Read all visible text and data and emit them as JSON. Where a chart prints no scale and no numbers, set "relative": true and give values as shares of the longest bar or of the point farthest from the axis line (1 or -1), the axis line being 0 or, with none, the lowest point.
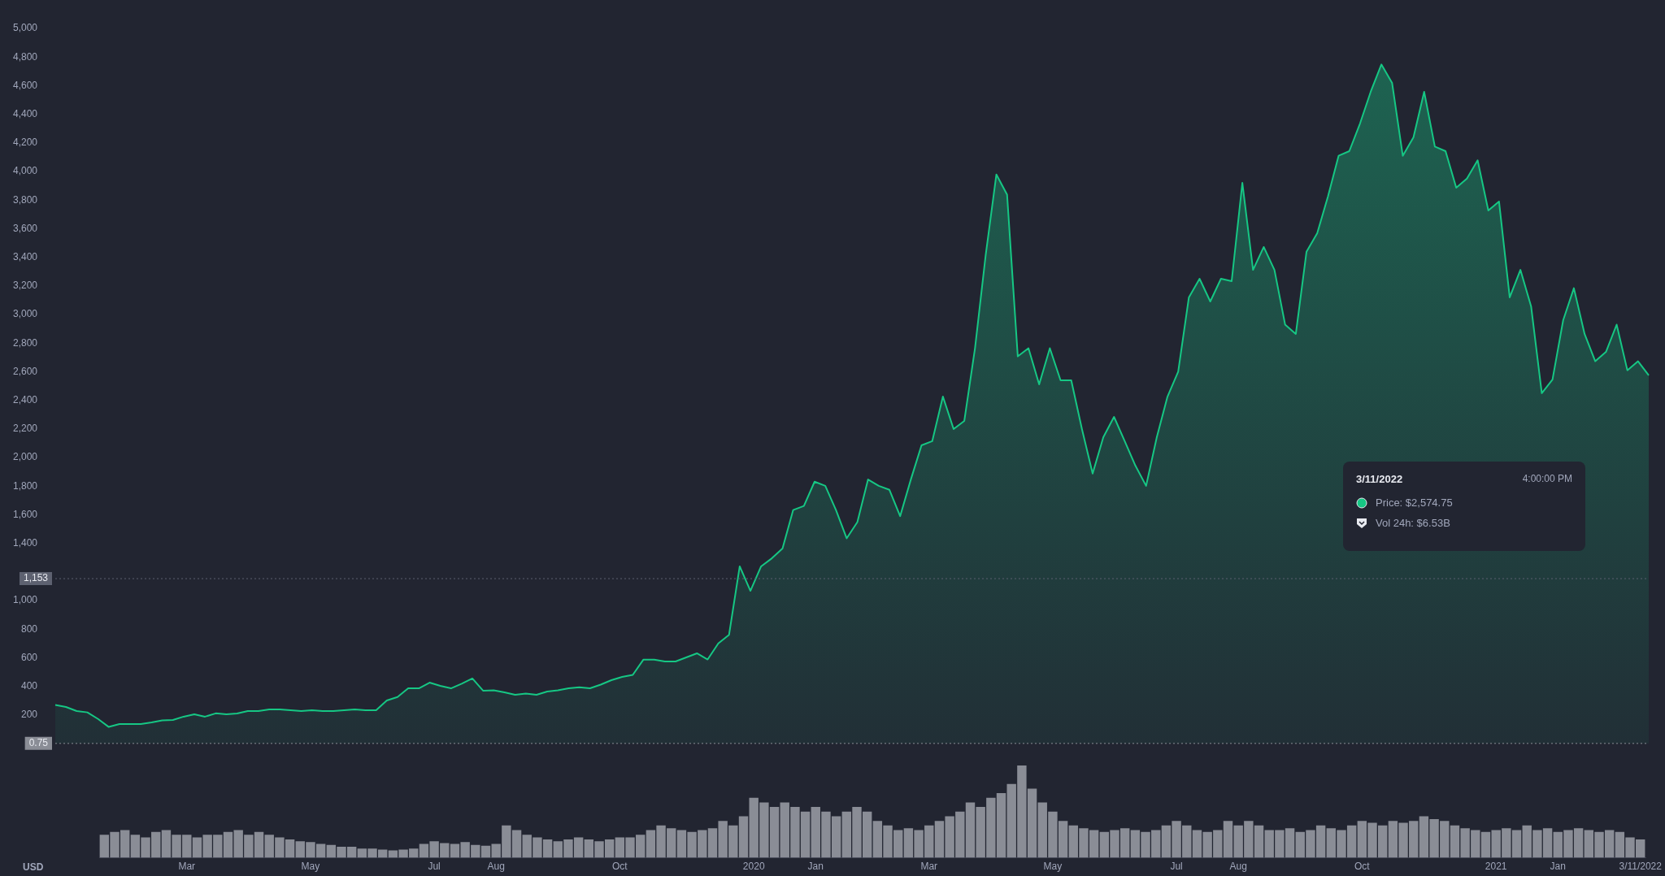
{
  "chart_data": [
    {
      "type": "area",
      "categories": [
        null,
        null,
        null,
        null,
        null,
        null,
        null,
        null,
        null,
        null,
        null,
        null,
        null,
        null,
        null,
        null,
        null,
        null,
        null,
        null,
        null,
        null,
        null,
        null,
        null,
        null,
        null,
        null,
        null,
        null,
        null,
        null,
        null,
        null,
        null,
        null,
        null,
        null,
        null,
        null,
        null,
        null,
        null,
        null,
        null,
        null,
        null,
        null,
        null,
        null,
        null,
        null,
        null,
        null,
        null,
        null,
        null,
        null,
        null,
        null,
        null,
        null,
        null,
        null,
        null,
        null,
        null,
        null,
        null,
        null,
        null,
        null,
        null,
        null,
        null,
        null,
        null,
        null,
        null,
        null,
        null,
        null,
        null,
        null,
        null,
        null,
        null,
        null,
        null,
        null,
        null,
        null,
        null,
        null,
        null,
        null,
        null,
        null,
        null,
        null,
        null,
        null,
        null,
        null,
        null,
        null,
        null,
        null,
        null,
        null,
        null,
        null,
        null,
        null,
        null,
        null,
        null,
        null,
        null,
        null,
        null,
        null,
        null,
        null,
        null,
        null,
        null,
        null,
        null,
        null,
        null,
        null,
        null,
        null,
        null,
        null,
        null,
        null,
        null,
        null,
        null,
        null,
        null,
        null,
        null,
        null,
        null,
        null,
        null,
        null
      ],
      "series": [
        {
          "color": "#16c784",
          "values": [
            270,
            256,
            227,
            218,
            172,
            116,
            136,
            136,
            136,
            148,
            162,
            165,
            188,
            205,
            188,
            211,
            205,
            210,
            227,
            227,
            239,
            239,
            233,
            227,
            233,
            227,
            227,
            233,
            239,
            233,
            233,
            301,
            325,
            386,
            386,
            426,
            403,
            386,
            418,
            455,
            370,
            372,
            358,
            341,
            350,
            341,
            364,
            372,
            386,
            393,
            386,
            412,
            443,
            466,
            480,
            587,
            587,
            574,
            574,
            602,
            631,
            588,
            700,
            760,
            1239,
            1068,
            1239,
            1295,
            1364,
            1633,
            1661,
            1831,
            1802,
            1633,
            1435,
            1548,
            1846,
            1802,
            1774,
            1590,
            1846,
            2085,
            2114,
            2426,
            2199,
            2256,
            2764,
            3415,
            3979,
            3838,
            2707,
            2764,
            2511,
            2764,
            2540,
            2540,
            2199,
            1888,
            2142,
            2284,
            2114,
            1943,
            1802,
            2142,
            2426,
            2600,
            3120,
            3250,
            3091,
            3250,
            3233,
            3920,
            3312,
            3472,
            3312,
            2929,
            2864,
            3439,
            3568,
            3824,
            4110,
            4142,
            4335,
            4557,
            4748,
            4620,
            4110,
            4239,
            4557,
            4174,
            4142,
            3886,
            3950,
            4078,
            3727,
            3790,
            3120,
            3312,
            3057,
            2450,
            2545,
            2960,
            3184,
            2864,
            2673,
            2738,
            2929,
            2610,
            2673,
            2575
          ]
        }
      ],
      "ylim": [
        0,
        5000
      ],
      "yticks": [
        {
          "value": 200,
          "label": "200"
        },
        {
          "value": 400,
          "label": "400"
        },
        {
          "value": 600,
          "label": "600"
        },
        {
          "value": 800,
          "label": "800"
        },
        {
          "value": 1000,
          "label": "1,000"
        },
        {
          "value": 1400,
          "label": "1,400"
        },
        {
          "value": 1600,
          "label": "1,600"
        },
        {
          "value": 1800,
          "label": "1,800"
        },
        {
          "value": 2000,
          "label": "2,000"
        },
        {
          "value": 2200,
          "label": "2,200"
        },
        {
          "value": 2400,
          "label": "2,400"
        },
        {
          "value": 2600,
          "label": "2,600"
        },
        {
          "value": 2800,
          "label": "2,800"
        },
        {
          "value": 3000,
          "label": "3,000"
        },
        {
          "value": 3200,
          "label": "3,200"
        },
        {
          "value": 3400,
          "label": "3,400"
        },
        {
          "value": 3600,
          "label": "3,600"
        },
        {
          "value": 3800,
          "label": "3,800"
        },
        {
          "value": 4000,
          "label": "4,000"
        },
        {
          "value": 4200,
          "label": "4,200"
        },
        {
          "value": 4400,
          "label": "4,400"
        },
        {
          "value": 4600,
          "label": "4,600"
        },
        {
          "value": 4800,
          "label": "4,800"
        },
        {
          "value": 5000,
          "label": "5,000"
        }
      ],
      "tick_labels": "y",
      "ref_lines": [
        {
          "axis": "y",
          "value": 1153,
          "label": "1,153",
          "color": "#5d6170",
          "line_style": "dotted"
        },
        {
          "axis": "y",
          "value": 0.75,
          "label": "0.75",
          "color": "#8a8d96",
          "line_style": "dotted"
        }
      ],
      "annotations": [
        "3/11/2022",
        "4:00:00 PM",
        "Price: $2,574.75",
        "Vol 24h: $6.53B"
      ]
    },
    {
      "type": "bar",
      "relative": true,
      "categories": [
        null,
        null,
        null,
        null,
        null,
        null,
        null,
        null,
        "Mar",
        null,
        null,
        null,
        null,
        null,
        null,
        null,
        null,
        null,
        null,
        null,
        "May",
        null,
        null,
        null,
        null,
        null,
        null,
        null,
        null,
        null,
        null,
        null,
        "Jul",
        null,
        null,
        null,
        null,
        null,
        "Aug",
        null,
        null,
        null,
        null,
        null,
        null,
        null,
        null,
        null,
        null,
        null,
        "Oct",
        null,
        null,
        null,
        null,
        null,
        null,
        null,
        null,
        null,
        null,
        null,
        null,
        "2020",
        null,
        null,
        null,
        null,
        null,
        "Jan",
        null,
        null,
        null,
        null,
        null,
        null,
        null,
        null,
        null,
        null,
        "Mar",
        null,
        null,
        null,
        null,
        null,
        null,
        null,
        null,
        null,
        null,
        null,
        "May",
        null,
        null,
        null,
        null,
        null,
        null,
        null,
        null,
        null,
        null,
        null,
        "Jul",
        null,
        null,
        null,
        null,
        null,
        "Aug",
        null,
        null,
        null,
        null,
        null,
        null,
        null,
        null,
        null,
        null,
        null,
        "Oct",
        null,
        null,
        null,
        null,
        null,
        null,
        null,
        null,
        null,
        null,
        null,
        null,
        "2021",
        null,
        null,
        null,
        null,
        null,
        "Jan",
        null,
        null,
        null,
        null,
        null,
        null,
        null,
        "3/11/2022"
      ],
      "series": [
        {
          "color": "#8a8d96",
          "values": [
            0.25,
            0.28,
            0.3,
            0.25,
            0.22,
            0.28,
            0.3,
            0.25,
            0.25,
            0.22,
            0.25,
            0.25,
            0.28,
            0.3,
            0.25,
            0.28,
            0.25,
            0.22,
            0.2,
            0.18,
            0.17,
            0.15,
            0.14,
            0.12,
            0.12,
            0.1,
            0.1,
            0.09,
            0.08,
            0.09,
            0.1,
            0.15,
            0.18,
            0.16,
            0.15,
            0.17,
            0.14,
            0.13,
            0.15,
            0.35,
            0.3,
            0.25,
            0.22,
            0.2,
            0.18,
            0.2,
            0.22,
            0.2,
            0.18,
            0.2,
            0.22,
            0.22,
            0.25,
            0.3,
            0.35,
            0.32,
            0.3,
            0.28,
            0.3,
            0.32,
            0.4,
            0.35,
            0.45,
            0.65,
            0.6,
            0.55,
            0.6,
            0.55,
            0.5,
            0.55,
            0.5,
            0.45,
            0.5,
            0.55,
            0.5,
            0.4,
            0.35,
            0.3,
            0.32,
            0.3,
            0.35,
            0.4,
            0.45,
            0.5,
            0.6,
            0.55,
            0.65,
            0.7,
            0.8,
            1,
            0.75,
            0.6,
            0.5,
            0.4,
            0.35,
            0.32,
            0.3,
            0.28,
            0.3,
            0.32,
            0.3,
            0.28,
            0.3,
            0.35,
            0.4,
            0.35,
            0.3,
            0.28,
            0.3,
            0.4,
            0.35,
            0.4,
            0.35,
            0.3,
            0.3,
            0.32,
            0.28,
            0.3,
            0.35,
            0.32,
            0.3,
            0.35,
            0.4,
            0.38,
            0.35,
            0.4,
            0.38,
            0.4,
            0.45,
            0.42,
            0.4,
            0.35,
            0.32,
            0.3,
            0.28,
            0.3,
            0.32,
            0.3,
            0.35,
            0.3,
            0.32,
            0.28,
            0.3,
            0.32,
            0.3,
            0.28,
            0.3,
            0.28,
            0.22,
            0.2
          ]
        }
      ],
      "tick_labels": "x",
      "annotations": [
        "USD"
      ]
    }
  ]
}
